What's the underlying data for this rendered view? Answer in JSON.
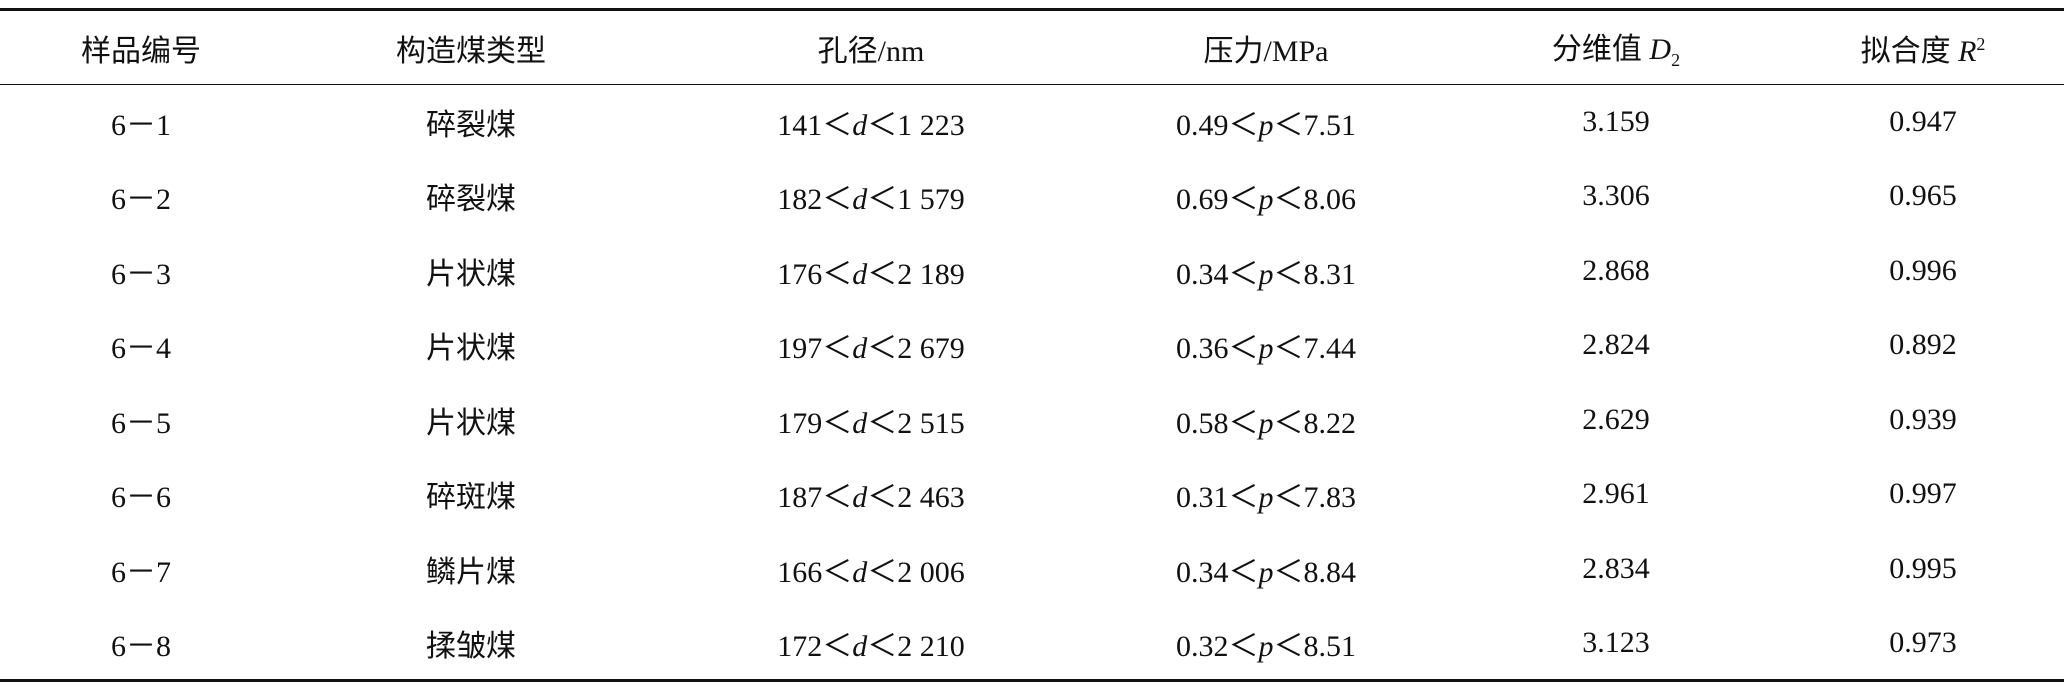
{
  "table": {
    "header": [
      "样品编号",
      "构造煤类型",
      "孔径/nm",
      "压力/MPa",
      [
        "分维值 ",
        "D",
        "2"
      ],
      [
        "拟合度 ",
        "R",
        "2"
      ]
    ],
    "rows": [
      [
        "6－1",
        "碎裂煤",
        [
          "141＜",
          "d",
          "＜1 223"
        ],
        [
          "0.49＜",
          "p",
          "＜7.51"
        ],
        "3.159",
        "0.947"
      ],
      [
        "6－2",
        "碎裂煤",
        [
          "182＜",
          "d",
          "＜1 579"
        ],
        [
          "0.69＜",
          "p",
          "＜8.06"
        ],
        "3.306",
        "0.965"
      ],
      [
        "6－3",
        "片状煤",
        [
          "176＜",
          "d",
          "＜2 189"
        ],
        [
          "0.34＜",
          "p",
          "＜8.31"
        ],
        "2.868",
        "0.996"
      ],
      [
        "6－4",
        "片状煤",
        [
          "197＜",
          "d",
          "＜2 679"
        ],
        [
          "0.36＜",
          "p",
          "＜7.44"
        ],
        "2.824",
        "0.892"
      ],
      [
        "6－5",
        "片状煤",
        [
          "179＜",
          "d",
          "＜2 515"
        ],
        [
          "0.58＜",
          "p",
          "＜8.22"
        ],
        "2.629",
        "0.939"
      ],
      [
        "6－6",
        "碎斑煤",
        [
          "187＜",
          "d",
          "＜2 463"
        ],
        [
          "0.31＜",
          "p",
          "＜7.83"
        ],
        "2.961",
        "0.997"
      ],
      [
        "6－7",
        "鳞片煤",
        [
          "166＜",
          "d",
          "＜2 006"
        ],
        [
          "0.34＜",
          "p",
          "＜8.84"
        ],
        "2.834",
        "0.995"
      ],
      [
        "6－8",
        "揉皱煤",
        [
          "172＜",
          "d",
          "＜2 210"
        ],
        [
          "0.32＜",
          "p",
          "＜8.51"
        ],
        "3.123",
        "0.973"
      ]
    ]
  }
}
